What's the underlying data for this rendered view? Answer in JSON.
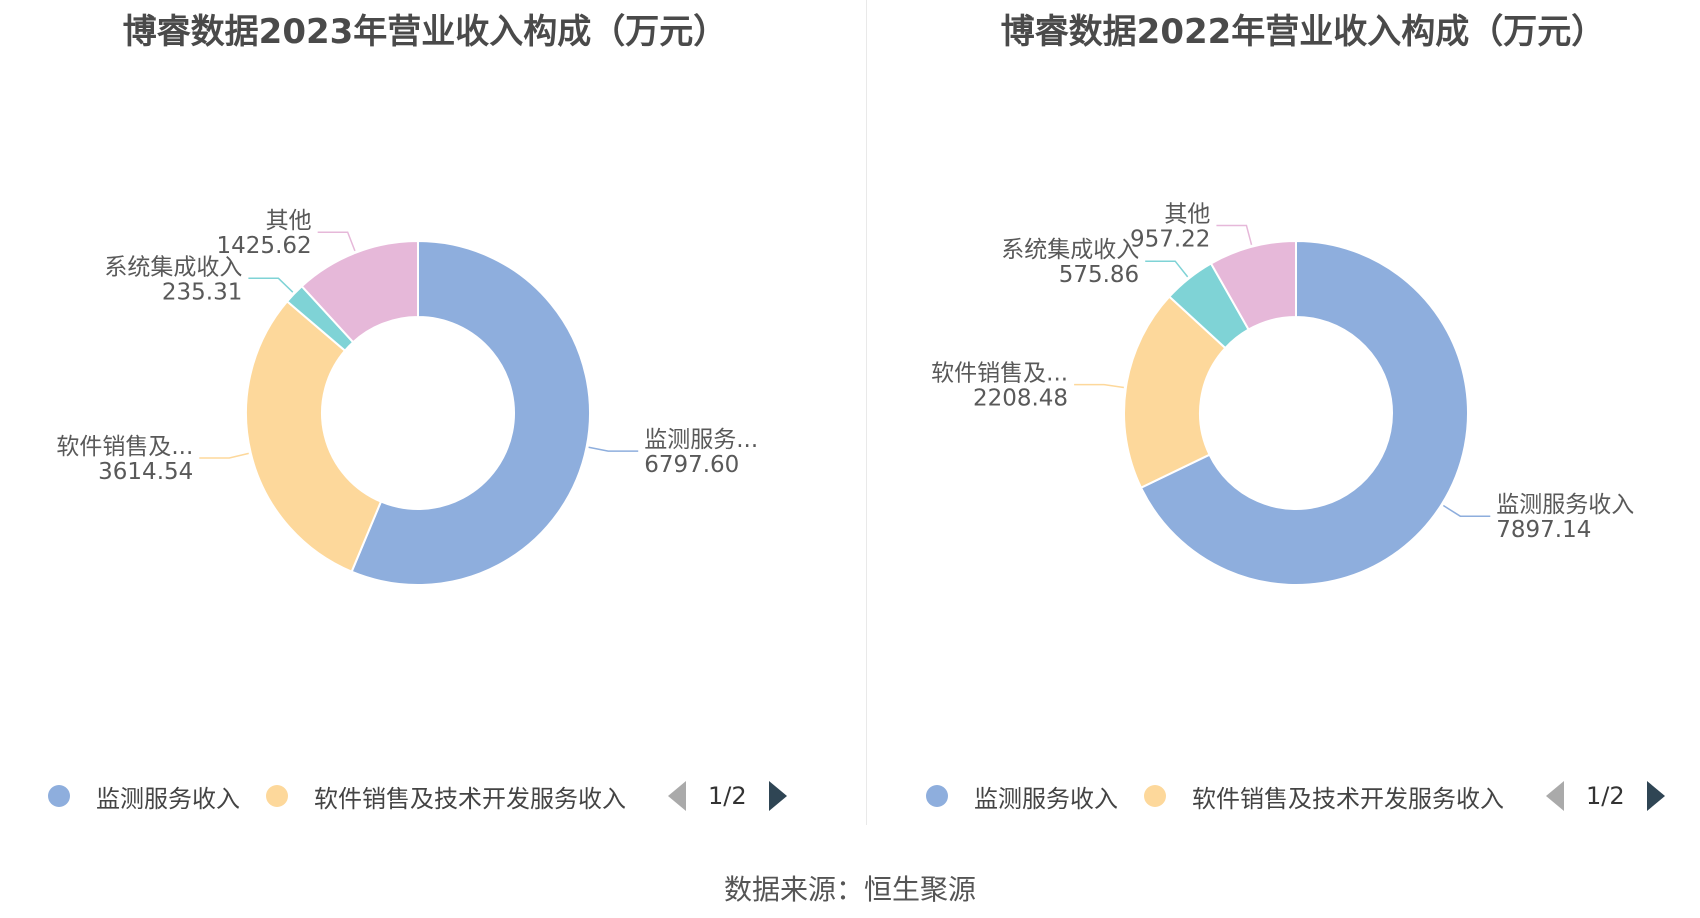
{
  "source": "数据来源：恒生聚源",
  "chart_data": [
    {
      "type": "pie",
      "title": "博睿数据2023年营业收入构成（万元）",
      "slices": [
        {
          "name": "监测服务收入",
          "label": "监测服务...",
          "value": 6797.6,
          "value_text": "6797.60",
          "color": "#8eaedd"
        },
        {
          "name": "软件销售及技术开发服务收入",
          "label": "软件销售及...",
          "value": 3614.54,
          "value_text": "3614.54",
          "color": "#fdd89b"
        },
        {
          "name": "系统集成收入",
          "label": "系统集成收入",
          "value": 235.31,
          "value_text": "235.31",
          "color": "#7fd3d6"
        },
        {
          "name": "其他",
          "label": "其他",
          "value": 1425.62,
          "value_text": "1425.62",
          "color": "#e6b8d9"
        }
      ],
      "legend": {
        "items": [
          {
            "name": "监测服务收入",
            "color": "#8eaedd"
          },
          {
            "name": "软件销售及技术开发服务收入",
            "color": "#fdd89b"
          }
        ],
        "page": "1/2",
        "placement": "bottom"
      }
    },
    {
      "type": "pie",
      "title": "博睿数据2022年营业收入构成（万元）",
      "slices": [
        {
          "name": "监测服务收入",
          "label": "监测服务收入",
          "value": 7897.14,
          "value_text": "7897.14",
          "color": "#8eaedd"
        },
        {
          "name": "软件销售及技术开发服务收入",
          "label": "软件销售及...",
          "value": 2208.48,
          "value_text": "2208.48",
          "color": "#fdd89b"
        },
        {
          "name": "系统集成收入",
          "label": "系统集成收入",
          "value": 575.86,
          "value_text": "575.86",
          "color": "#7fd3d6"
        },
        {
          "name": "其他",
          "label": "其他",
          "value": 957.22,
          "value_text": "957.22",
          "color": "#e6b8d9"
        }
      ],
      "legend": {
        "items": [
          {
            "name": "监测服务收入",
            "color": "#8eaedd"
          },
          {
            "name": "软件销售及技术开发服务收入",
            "color": "#fdd89b"
          }
        ],
        "page": "1/2",
        "placement": "bottom"
      }
    }
  ]
}
